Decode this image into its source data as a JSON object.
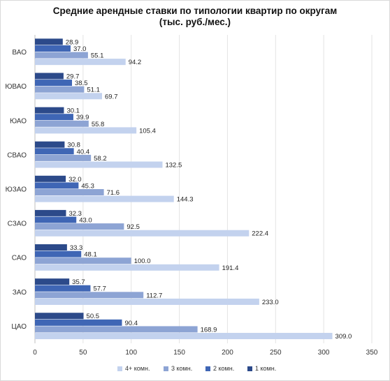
{
  "chart_data": {
    "type": "bar",
    "orientation": "horizontal",
    "title": [
      "Средние арендные ставки по типологии квартир по округам",
      "(тыс. руб./мес.)"
    ],
    "categories": [
      "ВАО",
      "ЮВАО",
      "ЮАО",
      "СВАО",
      "ЮЗАО",
      "СЗАО",
      "САО",
      "ЗАО",
      "ЦАО"
    ],
    "series": [
      {
        "name": "1 комн.",
        "color": "#2c4a8a",
        "values": [
          28.9,
          29.7,
          30.1,
          30.8,
          32.0,
          32.3,
          33.3,
          35.7,
          50.5
        ]
      },
      {
        "name": "2 комн.",
        "color": "#3f66b5",
        "values": [
          37.0,
          38.5,
          39.9,
          40.4,
          45.3,
          43.0,
          48.1,
          57.7,
          90.4
        ]
      },
      {
        "name": "3 комн.",
        "color": "#8da4d4",
        "values": [
          55.1,
          51.1,
          55.8,
          58.2,
          71.6,
          92.5,
          100.0,
          112.7,
          168.9
        ]
      },
      {
        "name": "4+ комн.",
        "color": "#c3d2ee",
        "values": [
          94.2,
          69.7,
          105.4,
          132.5,
          144.3,
          222.4,
          191.4,
          233.0,
          309.0
        ]
      }
    ],
    "value_labels": [
      [
        "28.9",
        "29.7",
        "30.1",
        "30.8",
        "32.0",
        "32.3",
        "33.3",
        "35.7",
        "50.5"
      ],
      [
        "37.0",
        "38.5",
        "39.9",
        "40.4",
        "45.3",
        "43.0",
        "48.1",
        "57.7",
        "90.4"
      ],
      [
        "55.1",
        "51.1",
        "55.8",
        "58.2",
        "71.6",
        "92.5",
        "100.0",
        "112.7",
        "168.9"
      ],
      [
        "94.2",
        "69.7",
        "105.4",
        "132.5",
        "144.3",
        "222.4",
        "191.4",
        "233.0",
        "309.0"
      ]
    ],
    "xticks": [
      "0",
      "50",
      "100",
      "150",
      "200",
      "250",
      "300",
      "350"
    ],
    "xlim": [
      0,
      350
    ],
    "grid": true,
    "legend_position": "bottom",
    "legend_order": [
      "4+ комн.",
      "3 комн.",
      "2 комн.",
      "1 комн."
    ]
  }
}
